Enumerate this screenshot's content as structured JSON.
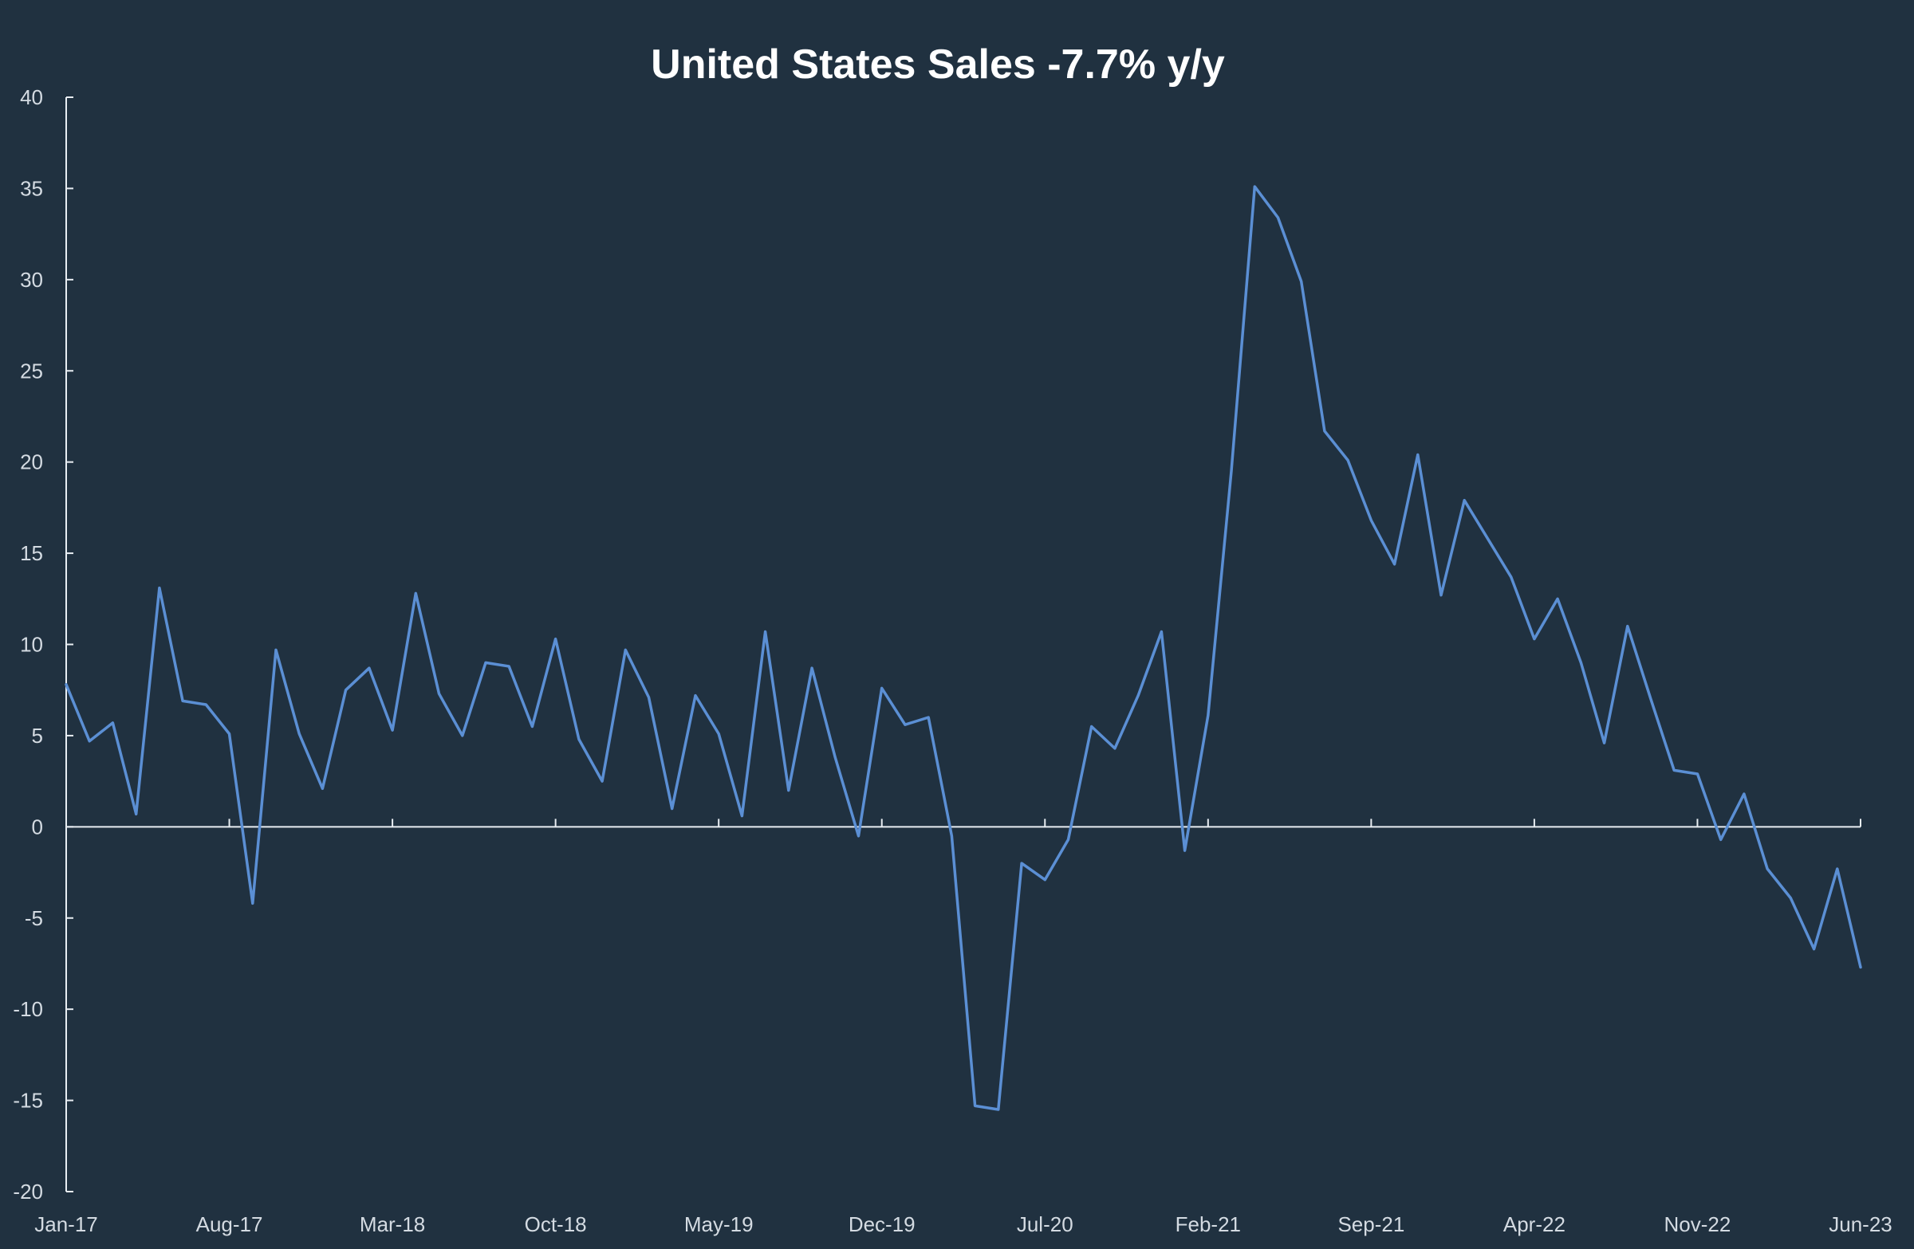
{
  "colors": {
    "background": "#203140",
    "series": "#5b8fd4",
    "axis": "#e8edf2",
    "text": "#d4dbe2",
    "title": "#ffffff"
  },
  "chart_data": {
    "type": "line",
    "title": "United States Sales -7.7% y/y",
    "xlabel": "",
    "ylabel": "",
    "ylim": [
      -20,
      40
    ],
    "y_ticks": [
      40,
      35,
      30,
      25,
      20,
      15,
      10,
      5,
      0,
      -5,
      -10,
      -15,
      -20
    ],
    "x_tick_labels": [
      "Jan-17",
      "Aug-17",
      "Mar-18",
      "Oct-18",
      "May-19",
      "Dec-19",
      "Jul-20",
      "Feb-21",
      "Sep-21",
      "Apr-22",
      "Nov-22",
      "Jun-23"
    ],
    "x_tick_every_months": 7,
    "grid": false,
    "legend": "none",
    "series": [
      {
        "values": [
          7.8,
          4.7,
          5.7,
          0.7,
          13.1,
          6.9,
          6.7,
          5.1,
          -4.2,
          9.7,
          5.1,
          2.1,
          7.5,
          8.7,
          5.3,
          12.8,
          7.3,
          5.0,
          9.0,
          8.8,
          5.5,
          10.3,
          4.8,
          2.5,
          9.7,
          7.1,
          1.0,
          7.2,
          5.1,
          0.6,
          10.7,
          2.0,
          8.7,
          3.8,
          -0.5,
          7.6,
          5.6,
          6.0,
          -0.5,
          -15.3,
          -15.5,
          -2.0,
          -2.9,
          -0.7,
          5.5,
          4.3,
          7.2,
          10.7,
          -1.3,
          6.1,
          19.5,
          35.1,
          33.4,
          29.9,
          21.7,
          20.1,
          16.8,
          14.4,
          20.4,
          12.7,
          17.9,
          15.8,
          13.7,
          10.3,
          12.5,
          9.0,
          4.6,
          11.0,
          7.0,
          3.1,
          2.9,
          -0.7,
          1.8,
          -2.3,
          -3.9,
          -6.7,
          -2.3,
          -7.7
        ]
      }
    ]
  }
}
